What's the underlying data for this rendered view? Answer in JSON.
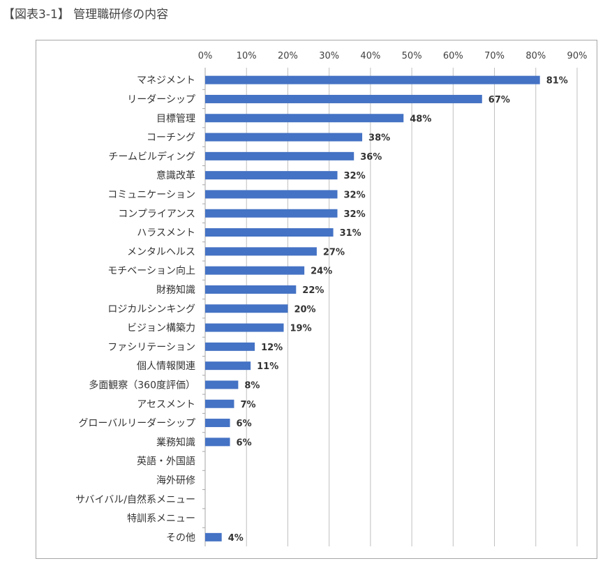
{
  "page": {
    "title": "【図表3-1】 管理職研修の内容"
  },
  "chart_data": {
    "type": "bar",
    "orientation": "horizontal",
    "title": "",
    "xlabel": "",
    "ylabel": "",
    "xlim": [
      0,
      90
    ],
    "ticks": [
      0,
      10,
      20,
      30,
      40,
      50,
      60,
      70,
      80,
      90
    ],
    "tick_suffix": "%",
    "x_axis_position": "top",
    "grid": true,
    "bar_color": "#4472C4",
    "categories": [
      "マネジメント",
      "リーダーシップ",
      "目標管理",
      "コーチング",
      "チームビルディング",
      "意識改革",
      "コミュニケーション",
      "コンプライアンス",
      "ハラスメント",
      "メンタルヘルス",
      "モチベーション向上",
      "財務知識",
      "ロジカルシンキング",
      "ビジョン構築力",
      "ファシリテーション",
      "個人情報関連",
      "多面観察（360度評価）",
      "アセスメント",
      "グローバルリーダーシップ",
      "業務知識",
      "英語・外国語",
      "海外研修",
      "サバイバル/自然系メニュー",
      "特訓系メニュー",
      "その他"
    ],
    "values": [
      81,
      67,
      48,
      38,
      36,
      32,
      32,
      32,
      31,
      27,
      24,
      22,
      20,
      19,
      12,
      11,
      8,
      7,
      6,
      6,
      null,
      null,
      null,
      null,
      4
    ],
    "labels": [
      "81%",
      "67%",
      "48%",
      "38%",
      "36%",
      "32%",
      "32%",
      "32%",
      "31%",
      "27%",
      "24%",
      "22%",
      "20%",
      "19%",
      "12%",
      "11%",
      "8%",
      "7%",
      "6%",
      "6%",
      "",
      "",
      "",
      "",
      "4%"
    ]
  }
}
